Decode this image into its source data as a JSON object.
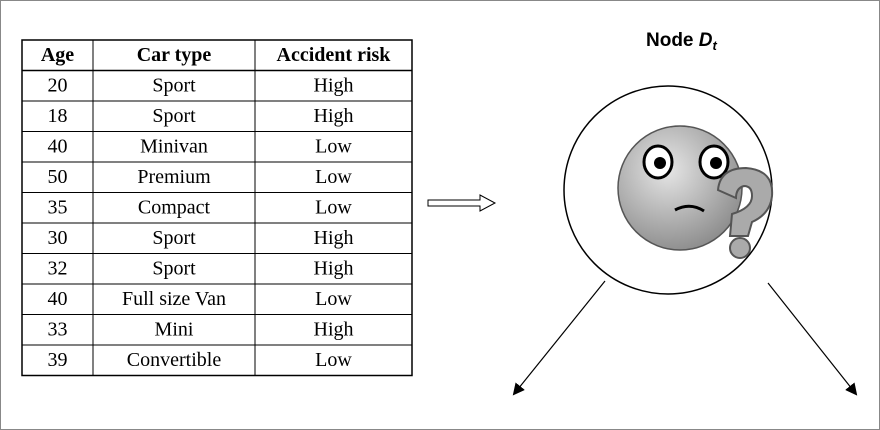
{
  "table": {
    "header": [
      "Age",
      "Car type",
      "Accident risk"
    ],
    "rows": [
      [
        "20",
        "Sport",
        "High"
      ],
      [
        "18",
        "Sport",
        "High"
      ],
      [
        "40",
        "Minivan",
        "Low"
      ],
      [
        "50",
        "Premium",
        "Low"
      ],
      [
        "35",
        "Compact",
        "Low"
      ],
      [
        "30",
        "Sport",
        "High"
      ],
      [
        "32",
        "Sport",
        "High"
      ],
      [
        "40",
        "Full size Van",
        "Low"
      ],
      [
        "33",
        "Mini",
        "High"
      ],
      [
        "39",
        "Convertible",
        "Low"
      ]
    ]
  },
  "node": {
    "label": "Node",
    "symbol": "D",
    "subscript": "t"
  }
}
